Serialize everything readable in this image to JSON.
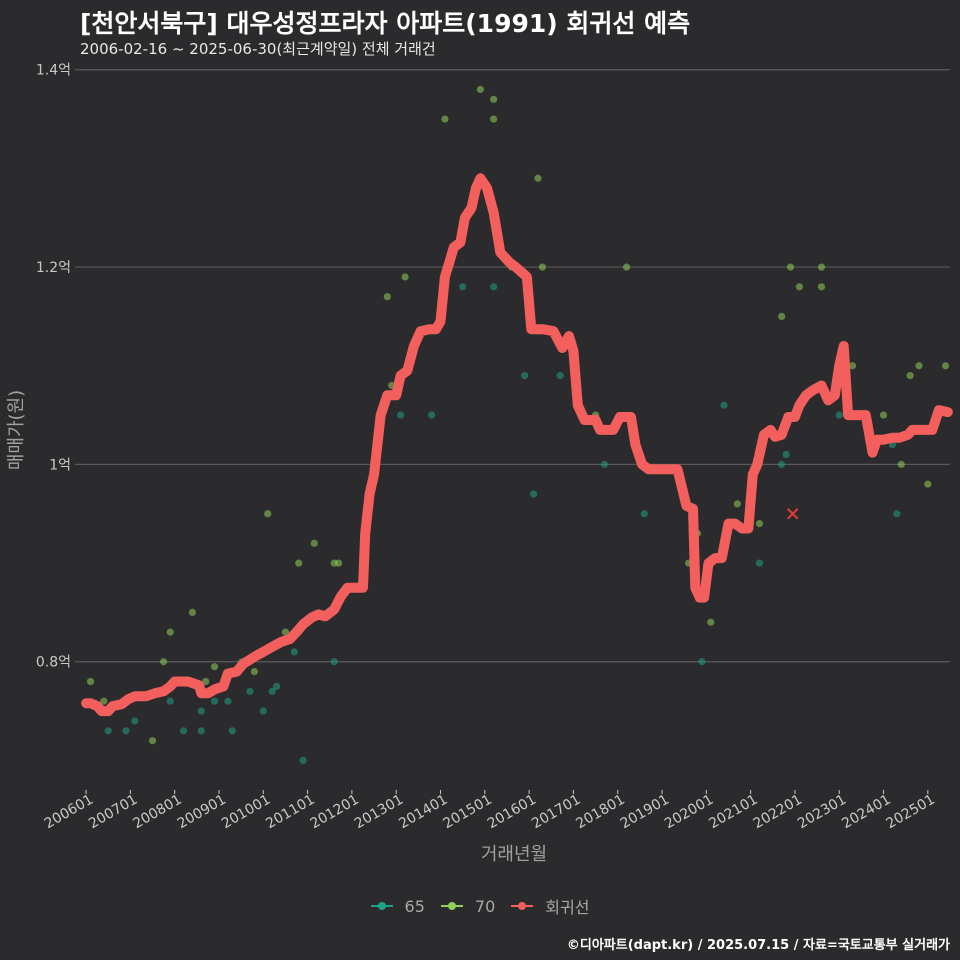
{
  "title": "[천안서북구] 대우성정프라자 아파트(1991) 회귀선 예측",
  "subtitle": "2006-02-16 ~ 2025-06-30(최근계약일) 전체 거래건",
  "caption": "©디아파트(dapt.kr) / 2025.07.15 / 자료=국토교통부 실거래가",
  "colors": {
    "background": "#2b2b2d",
    "grid": "#5a5a5c",
    "series_65": "#1fa187",
    "series_70": "#8fd05a",
    "regression": "#f25f5c"
  },
  "chart_data": {
    "type": "scatter",
    "xlabel": "거래년월",
    "ylabel": "매매가(원)",
    "xlim": [
      2005.75,
      2025.5
    ],
    "ylim": [
      0.67,
      1.42
    ],
    "y_ticks": [
      {
        "value": 0.8,
        "label": "0.8억"
      },
      {
        "value": 1.0,
        "label": "1억"
      },
      {
        "value": 1.2,
        "label": "1.2억"
      },
      {
        "value": 1.4,
        "label": "1.4억"
      }
    ],
    "x_ticks": [
      {
        "value": 2006.0,
        "label": "200601"
      },
      {
        "value": 2007.0,
        "label": "200701"
      },
      {
        "value": 2008.0,
        "label": "200801"
      },
      {
        "value": 2009.0,
        "label": "200901"
      },
      {
        "value": 2010.0,
        "label": "201001"
      },
      {
        "value": 2011.0,
        "label": "201101"
      },
      {
        "value": 2012.0,
        "label": "201201"
      },
      {
        "value": 2013.0,
        "label": "201301"
      },
      {
        "value": 2014.0,
        "label": "201401"
      },
      {
        "value": 2015.0,
        "label": "201501"
      },
      {
        "value": 2016.0,
        "label": "201601"
      },
      {
        "value": 2017.0,
        "label": "201701"
      },
      {
        "value": 2018.0,
        "label": "201801"
      },
      {
        "value": 2019.0,
        "label": "201901"
      },
      {
        "value": 2020.0,
        "label": "202001"
      },
      {
        "value": 2021.0,
        "label": "202101"
      },
      {
        "value": 2022.0,
        "label": "202201"
      },
      {
        "value": 2023.0,
        "label": "202301"
      },
      {
        "value": 2024.0,
        "label": "202401"
      },
      {
        "value": 2025.0,
        "label": "202501"
      }
    ],
    "legend": [
      {
        "name": "65",
        "color": "#1fa187"
      },
      {
        "name": "70",
        "color": "#8fd05a"
      },
      {
        "name": "회귀선",
        "color": "#f25f5c"
      }
    ],
    "series": [
      {
        "name": "65",
        "points": [
          [
            2006.5,
            0.73
          ],
          [
            2006.9,
            0.73
          ],
          [
            2007.1,
            0.74
          ],
          [
            2007.9,
            0.76
          ],
          [
            2008.2,
            0.73
          ],
          [
            2008.6,
            0.73
          ],
          [
            2008.6,
            0.75
          ],
          [
            2008.9,
            0.76
          ],
          [
            2009.2,
            0.76
          ],
          [
            2009.3,
            0.73
          ],
          [
            2009.5,
            0.8
          ],
          [
            2009.7,
            0.77
          ],
          [
            2010.0,
            0.75
          ],
          [
            2010.2,
            0.77
          ],
          [
            2010.3,
            0.775
          ],
          [
            2010.7,
            0.81
          ],
          [
            2010.9,
            0.7
          ],
          [
            2011.6,
            0.8
          ],
          [
            2013.1,
            1.05
          ],
          [
            2013.8,
            1.05
          ],
          [
            2014.5,
            1.18
          ],
          [
            2015.2,
            1.18
          ],
          [
            2015.9,
            1.09
          ],
          [
            2016.1,
            0.97
          ],
          [
            2016.7,
            1.09
          ],
          [
            2017.7,
            1.0
          ],
          [
            2018.6,
            0.95
          ],
          [
            2019.9,
            0.8
          ],
          [
            2020.4,
            1.06
          ],
          [
            2021.2,
            0.9
          ],
          [
            2021.7,
            1.0
          ],
          [
            2021.8,
            1.01
          ],
          [
            2023.0,
            1.05
          ],
          [
            2023.5,
            1.05
          ],
          [
            2024.2,
            1.02
          ],
          [
            2024.3,
            0.95
          ]
        ]
      },
      {
        "name": "70",
        "points": [
          [
            2006.1,
            0.78
          ],
          [
            2006.4,
            0.76
          ],
          [
            2007.5,
            0.72
          ],
          [
            2007.75,
            0.8
          ],
          [
            2007.9,
            0.83
          ],
          [
            2008.4,
            0.85
          ],
          [
            2008.7,
            0.78
          ],
          [
            2008.9,
            0.795
          ],
          [
            2009.8,
            0.79
          ],
          [
            2010.1,
            0.95
          ],
          [
            2010.4,
            0.82
          ],
          [
            2010.5,
            0.83
          ],
          [
            2010.8,
            0.9
          ],
          [
            2011.15,
            0.92
          ],
          [
            2011.6,
            0.9
          ],
          [
            2011.7,
            0.9
          ],
          [
            2012.4,
            0.96
          ],
          [
            2012.8,
            1.17
          ],
          [
            2012.9,
            1.08
          ],
          [
            2013.2,
            1.19
          ],
          [
            2014.1,
            1.35
          ],
          [
            2014.9,
            1.38
          ],
          [
            2015.2,
            1.35
          ],
          [
            2015.2,
            1.37
          ],
          [
            2015.6,
            1.2
          ],
          [
            2016.2,
            1.29
          ],
          [
            2016.3,
            1.2
          ],
          [
            2017.5,
            1.05
          ],
          [
            2018.2,
            1.2
          ],
          [
            2019.6,
            0.9
          ],
          [
            2019.8,
            0.93
          ],
          [
            2020.1,
            0.84
          ],
          [
            2020.7,
            0.96
          ],
          [
            2021.2,
            0.94
          ],
          [
            2021.7,
            1.15
          ],
          [
            2021.9,
            1.2
          ],
          [
            2022.1,
            1.18
          ],
          [
            2022.6,
            1.18
          ],
          [
            2022.6,
            1.2
          ],
          [
            2023.3,
            1.1
          ],
          [
            2024.0,
            1.05
          ],
          [
            2024.4,
            1.0
          ],
          [
            2024.6,
            1.09
          ],
          [
            2024.8,
            1.1
          ],
          [
            2025.0,
            0.98
          ],
          [
            2025.4,
            1.1
          ]
        ]
      }
    ],
    "regression": [
      [
        2006.0,
        0.758
      ],
      [
        2006.1,
        0.758
      ],
      [
        2006.25,
        0.755
      ],
      [
        2006.35,
        0.75
      ],
      [
        2006.5,
        0.75
      ],
      [
        2006.6,
        0.755
      ],
      [
        2006.8,
        0.757
      ],
      [
        2006.95,
        0.762
      ],
      [
        2007.1,
        0.765
      ],
      [
        2007.35,
        0.765
      ],
      [
        2007.55,
        0.768
      ],
      [
        2007.75,
        0.77
      ],
      [
        2007.9,
        0.775
      ],
      [
        2008.0,
        0.78
      ],
      [
        2008.3,
        0.78
      ],
      [
        2008.55,
        0.776
      ],
      [
        2008.6,
        0.768
      ],
      [
        2008.75,
        0.768
      ],
      [
        2008.9,
        0.772
      ],
      [
        2009.1,
        0.775
      ],
      [
        2009.2,
        0.788
      ],
      [
        2009.4,
        0.79
      ],
      [
        2009.55,
        0.798
      ],
      [
        2009.8,
        0.805
      ],
      [
        2010.0,
        0.81
      ],
      [
        2010.2,
        0.815
      ],
      [
        2010.4,
        0.82
      ],
      [
        2010.6,
        0.823
      ],
      [
        2010.75,
        0.83
      ],
      [
        2010.9,
        0.838
      ],
      [
        2011.1,
        0.845
      ],
      [
        2011.25,
        0.848
      ],
      [
        2011.4,
        0.846
      ],
      [
        2011.6,
        0.853
      ],
      [
        2011.75,
        0.866
      ],
      [
        2011.9,
        0.875
      ],
      [
        2012.1,
        0.875
      ],
      [
        2012.25,
        0.875
      ],
      [
        2012.3,
        0.93
      ],
      [
        2012.4,
        0.97
      ],
      [
        2012.5,
        0.99
      ],
      [
        2012.65,
        1.05
      ],
      [
        2012.8,
        1.07
      ],
      [
        2013.0,
        1.07
      ],
      [
        2013.1,
        1.09
      ],
      [
        2013.25,
        1.095
      ],
      [
        2013.4,
        1.12
      ],
      [
        2013.55,
        1.135
      ],
      [
        2013.75,
        1.137
      ],
      [
        2013.9,
        1.137
      ],
      [
        2014.0,
        1.145
      ],
      [
        2014.1,
        1.19
      ],
      [
        2014.2,
        1.205
      ],
      [
        2014.3,
        1.22
      ],
      [
        2014.45,
        1.225
      ],
      [
        2014.55,
        1.25
      ],
      [
        2014.7,
        1.26
      ],
      [
        2014.8,
        1.28
      ],
      [
        2014.9,
        1.29
      ],
      [
        2015.05,
        1.28
      ],
      [
        2015.2,
        1.255
      ],
      [
        2015.35,
        1.215
      ],
      [
        2015.55,
        1.205
      ],
      [
        2015.7,
        1.2
      ],
      [
        2015.95,
        1.19
      ],
      [
        2016.05,
        1.137
      ],
      [
        2016.3,
        1.137
      ],
      [
        2016.55,
        1.135
      ],
      [
        2016.75,
        1.118
      ],
      [
        2016.9,
        1.13
      ],
      [
        2017.0,
        1.115
      ],
      [
        2017.1,
        1.06
      ],
      [
        2017.25,
        1.045
      ],
      [
        2017.5,
        1.045
      ],
      [
        2017.6,
        1.035
      ],
      [
        2017.9,
        1.035
      ],
      [
        2018.05,
        1.048
      ],
      [
        2018.3,
        1.048
      ],
      [
        2018.4,
        1.02
      ],
      [
        2018.55,
        1.0
      ],
      [
        2018.7,
        0.995
      ],
      [
        2018.95,
        0.995
      ],
      [
        2019.15,
        0.995
      ],
      [
        2019.35,
        0.995
      ],
      [
        2019.55,
        0.958
      ],
      [
        2019.7,
        0.955
      ],
      [
        2019.75,
        0.875
      ],
      [
        2019.85,
        0.865
      ],
      [
        2019.95,
        0.865
      ],
      [
        2020.05,
        0.9
      ],
      [
        2020.2,
        0.905
      ],
      [
        2020.35,
        0.905
      ],
      [
        2020.5,
        0.94
      ],
      [
        2020.65,
        0.94
      ],
      [
        2020.8,
        0.935
      ],
      [
        2020.95,
        0.935
      ],
      [
        2021.05,
        0.99
      ],
      [
        2021.15,
        1.0
      ],
      [
        2021.3,
        1.03
      ],
      [
        2021.45,
        1.035
      ],
      [
        2021.55,
        1.028
      ],
      [
        2021.7,
        1.03
      ],
      [
        2021.85,
        1.048
      ],
      [
        2022.0,
        1.048
      ],
      [
        2022.1,
        1.06
      ],
      [
        2022.25,
        1.07
      ],
      [
        2022.4,
        1.075
      ],
      [
        2022.6,
        1.08
      ],
      [
        2022.75,
        1.065
      ],
      [
        2022.9,
        1.07
      ],
      [
        2023.0,
        1.1
      ],
      [
        2023.1,
        1.12
      ],
      [
        2023.2,
        1.05
      ],
      [
        2023.35,
        1.05
      ],
      [
        2023.6,
        1.05
      ],
      [
        2023.75,
        1.012
      ],
      [
        2023.85,
        1.025
      ],
      [
        2024.0,
        1.025
      ],
      [
        2024.2,
        1.027
      ],
      [
        2024.35,
        1.027
      ],
      [
        2024.55,
        1.03
      ],
      [
        2024.65,
        1.035
      ],
      [
        2024.8,
        1.035
      ],
      [
        2024.95,
        1.035
      ],
      [
        2025.1,
        1.035
      ],
      [
        2025.25,
        1.055
      ],
      [
        2025.45,
        1.053
      ]
    ],
    "marker": {
      "x": 2021.95,
      "y": 0.95,
      "symbol": "x",
      "color": "#e03a3a"
    }
  }
}
